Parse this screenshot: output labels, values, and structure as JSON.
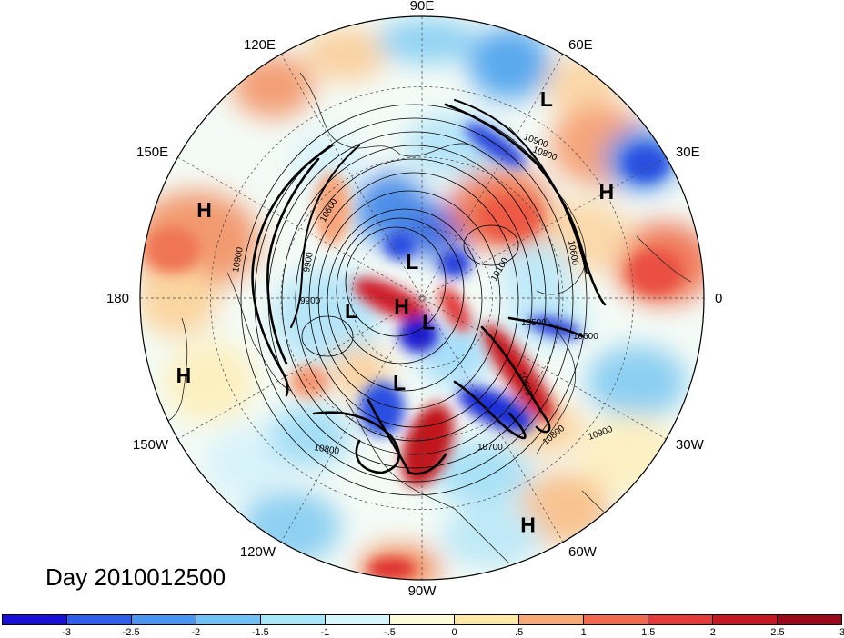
{
  "title": "Day 2010012500",
  "lon_labels": [
    {
      "text": "90E",
      "lon": 90
    },
    {
      "text": "60E",
      "lon": 60
    },
    {
      "text": "30E",
      "lon": 30
    },
    {
      "text": "0",
      "lon": 0
    },
    {
      "text": "30W",
      "lon": -30
    },
    {
      "text": "60W",
      "lon": -60
    },
    {
      "text": "90W",
      "lon": -90
    },
    {
      "text": "120W",
      "lon": -120
    },
    {
      "text": "150W",
      "lon": -150
    },
    {
      "text": "180",
      "lon": 180
    },
    {
      "text": "150E",
      "lon": 150
    },
    {
      "text": "120E",
      "lon": 120
    }
  ],
  "pressure_centers": [
    {
      "label": "L",
      "lon": 58,
      "lat": 15
    },
    {
      "label": "H",
      "lon": 30,
      "lat": 22
    },
    {
      "label": "H",
      "lon": 158,
      "lat": 15
    },
    {
      "label": "H",
      "lon": -162,
      "lat": 10
    },
    {
      "label": "L",
      "lon": 105,
      "lat": 78
    },
    {
      "label": "L",
      "lon": -170,
      "lat": 67
    },
    {
      "label": "H",
      "lon": -158,
      "lat": 83
    },
    {
      "label": "L",
      "lon": -75,
      "lat": 82
    },
    {
      "label": "L",
      "lon": -105,
      "lat": 62
    },
    {
      "label": "H",
      "lon": -65,
      "lat": 10
    }
  ],
  "contour_labels": [
    "10900",
    "10800",
    "10600",
    "10600",
    "10500",
    "10100",
    "9900",
    "9900",
    "10900",
    "10900",
    "10800",
    "10700",
    "10800",
    "10500",
    "10600"
  ],
  "colorbar": {
    "colors": [
      "#1a0fd6",
      "#2f5fe6",
      "#4a96f0",
      "#6fc0f5",
      "#a6e7fa",
      "#d6f6fb",
      "#fffbd9",
      "#fde9a6",
      "#f7a874",
      "#f06a50",
      "#e43a3a",
      "#c41825",
      "#9b0a1c"
    ],
    "ticks": [
      "-3",
      "-2.5",
      "-2",
      "-1.5",
      "-1",
      "-.5",
      "0",
      ".5",
      "1",
      "1.5",
      "2",
      "2.5",
      "3"
    ]
  },
  "colors": {
    "jet_contour": "#000000",
    "grid": "#444444"
  }
}
